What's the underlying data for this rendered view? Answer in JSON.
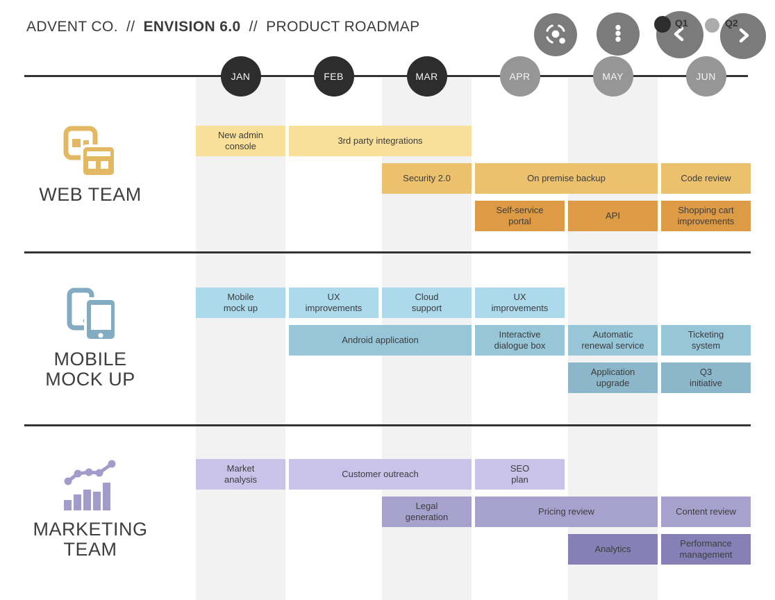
{
  "header": {
    "title_left": "ADVENT CO.",
    "sep": "//",
    "title_bold": "ENVISION 6.0",
    "title_right": "PRODUCT ROADMAP",
    "q1_label": "Q1",
    "q2_label": "Q2"
  },
  "colors": {
    "line": "#333333",
    "stripe": "#f2f2f2",
    "month_dark": "#2d2d2d",
    "month_gray": "#969696",
    "control_button": "#7b7b7b",
    "q1_dot": "#2d2d2d",
    "q2_dot": "#acacac",
    "bar_text": "#3c3c3c"
  },
  "timeline": {
    "months": [
      {
        "label": "JAN",
        "tone": "dark"
      },
      {
        "label": "FEB",
        "tone": "dark"
      },
      {
        "label": "MAR",
        "tone": "dark"
      },
      {
        "label": "APR",
        "tone": "gray"
      },
      {
        "label": "MAY",
        "tone": "gray"
      },
      {
        "label": "JUN",
        "tone": "gray"
      }
    ]
  },
  "teams": [
    {
      "id": "web-team",
      "label_lines": [
        "WEB TEAM"
      ],
      "icon": "browser-windows-icon",
      "colors": {
        "icon": "#e2b862",
        "row1": "#f9e09a",
        "row2": "#ecc16d",
        "row3": "#de9b45"
      },
      "bars": [
        {
          "label": "New admin\nconsole",
          "row": 1,
          "col": 1,
          "span": 1
        },
        {
          "label": "3rd party integrations",
          "row": 1,
          "col": 2,
          "span": 2
        },
        {
          "label": "Security 2.0",
          "row": 2,
          "col": 3,
          "span": 1
        },
        {
          "label": "On premise backup",
          "row": 2,
          "col": 4,
          "span": 2
        },
        {
          "label": "Code review",
          "row": 2,
          "col": 6,
          "span": 1
        },
        {
          "label": "Self-service\nportal",
          "row": 3,
          "col": 4,
          "span": 1
        },
        {
          "label": "API",
          "row": 3,
          "col": 5,
          "span": 1
        },
        {
          "label": "Shopping cart\nimprovements",
          "row": 3,
          "col": 6,
          "span": 1
        }
      ]
    },
    {
      "id": "mobile-mock-up",
      "label_lines": [
        "MOBILE",
        "MOCK UP"
      ],
      "icon": "smartphones-icon",
      "colors": {
        "icon": "#83abc1",
        "row1": "#acd9eb",
        "row2": "#97c6d9",
        "row3": "#8cb7ca"
      },
      "bars": [
        {
          "label": "Mobile\nmock up",
          "row": 1,
          "col": 1,
          "span": 1
        },
        {
          "label": "UX\nimprovements",
          "row": 1,
          "col": 2,
          "span": 1
        },
        {
          "label": "Cloud\nsupport",
          "row": 1,
          "col": 3,
          "span": 1
        },
        {
          "label": "UX\nimprovements",
          "row": 1,
          "col": 4,
          "span": 1
        },
        {
          "label": "Android application",
          "row": 2,
          "col": 2,
          "span": 2
        },
        {
          "label": "Interactive\ndialogue box",
          "row": 2,
          "col": 4,
          "span": 1
        },
        {
          "label": "Automatic\nrenewal service",
          "row": 2,
          "col": 5,
          "span": 1
        },
        {
          "label": "Ticketing\nsystem",
          "row": 2,
          "col": 6,
          "span": 1
        },
        {
          "label": "Application\nupgrade",
          "row": 3,
          "col": 5,
          "span": 1
        },
        {
          "label": "Q3\ninitiative",
          "row": 3,
          "col": 6,
          "span": 1
        }
      ]
    },
    {
      "id": "marketing-team",
      "label_lines": [
        "MARKETING",
        "TEAM"
      ],
      "icon": "growth-chart-icon",
      "colors": {
        "icon": "#a29ccb",
        "row1": "#c9c3e9",
        "row2": "#a7a1ce",
        "row3": "#8680b7"
      },
      "bars": [
        {
          "label": "Market\nanalysis",
          "row": 1,
          "col": 1,
          "span": 1
        },
        {
          "label": "Customer outreach",
          "row": 1,
          "col": 2,
          "span": 2
        },
        {
          "label": "SEO\nplan",
          "row": 1,
          "col": 4,
          "span": 1
        },
        {
          "label": "Legal\ngeneration",
          "row": 2,
          "col": 3,
          "span": 1
        },
        {
          "label": "Pricing review",
          "row": 2,
          "col": 4,
          "span": 2
        },
        {
          "label": "Content review",
          "row": 2,
          "col": 6,
          "span": 1
        },
        {
          "label": "Analytics",
          "row": 3,
          "col": 5,
          "span": 1
        },
        {
          "label": "Performance\nmanagement",
          "row": 3,
          "col": 6,
          "span": 1
        }
      ]
    }
  ]
}
